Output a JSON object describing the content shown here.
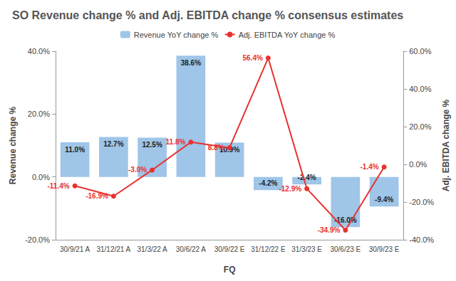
{
  "chart_data": {
    "type": "bar",
    "title": "SO Revenue change % and Adj. EBITDA change % consensus estimates",
    "x_label": "FQ",
    "y_label": "Revenue change %",
    "y2_label": "Adj. EBITDA change %",
    "categories": [
      "30/9/21 A",
      "31/12/21 A",
      "31/3/22 A",
      "30/6/22 A",
      "30/9/22 E",
      "31/12/22 E",
      "31/3/23 E",
      "30/6/23 E",
      "30/9/23 E"
    ],
    "series": [
      {
        "name": "Revenue YoY change %",
        "type": "bar",
        "color": "#9fc5e8",
        "values": [
          11.0,
          12.7,
          12.5,
          38.6,
          10.9,
          -4.2,
          -2.4,
          -16.0,
          -9.4
        ],
        "value_labels": [
          "11.0%",
          "12.7%",
          "12.5%",
          "38.6%",
          "10.9%",
          "-4.2%",
          "-2.4%",
          "-16.0%",
          "-9.4%"
        ]
      },
      {
        "name": "Adj. EBITDA YoY change %",
        "type": "line",
        "axis": "y2",
        "color": "#e8312e",
        "marker": "circle",
        "values": [
          -11.4,
          -16.9,
          -3.0,
          11.8,
          8.8,
          56.4,
          -12.9,
          -34.9,
          -1.4
        ],
        "value_labels": [
          "-11.4%",
          "-16.9%",
          "-3.0%",
          "11.8%",
          "8.8%",
          "56.4%",
          "-12.9%",
          "-34.9%",
          "-1.4%"
        ]
      }
    ],
    "ylim": [
      -20,
      40
    ],
    "yticks": [
      {
        "value": -20,
        "label": "-20.0%"
      },
      {
        "value": 0,
        "label": "0.0%"
      },
      {
        "value": 20,
        "label": "20.0%"
      },
      {
        "value": 40,
        "label": "40.0%"
      }
    ],
    "y2lim": [
      -40,
      60
    ],
    "y2ticks": [
      {
        "value": -40,
        "label": "-40.0%"
      },
      {
        "value": -20,
        "label": "-20.0%"
      },
      {
        "value": 0,
        "label": "0.0%"
      },
      {
        "value": 20,
        "label": "20.0%"
      },
      {
        "value": 40,
        "label": "40.0%"
      },
      {
        "value": 60,
        "label": "60.0%"
      }
    ],
    "grid": false,
    "legend": "top",
    "data_labels": true
  }
}
